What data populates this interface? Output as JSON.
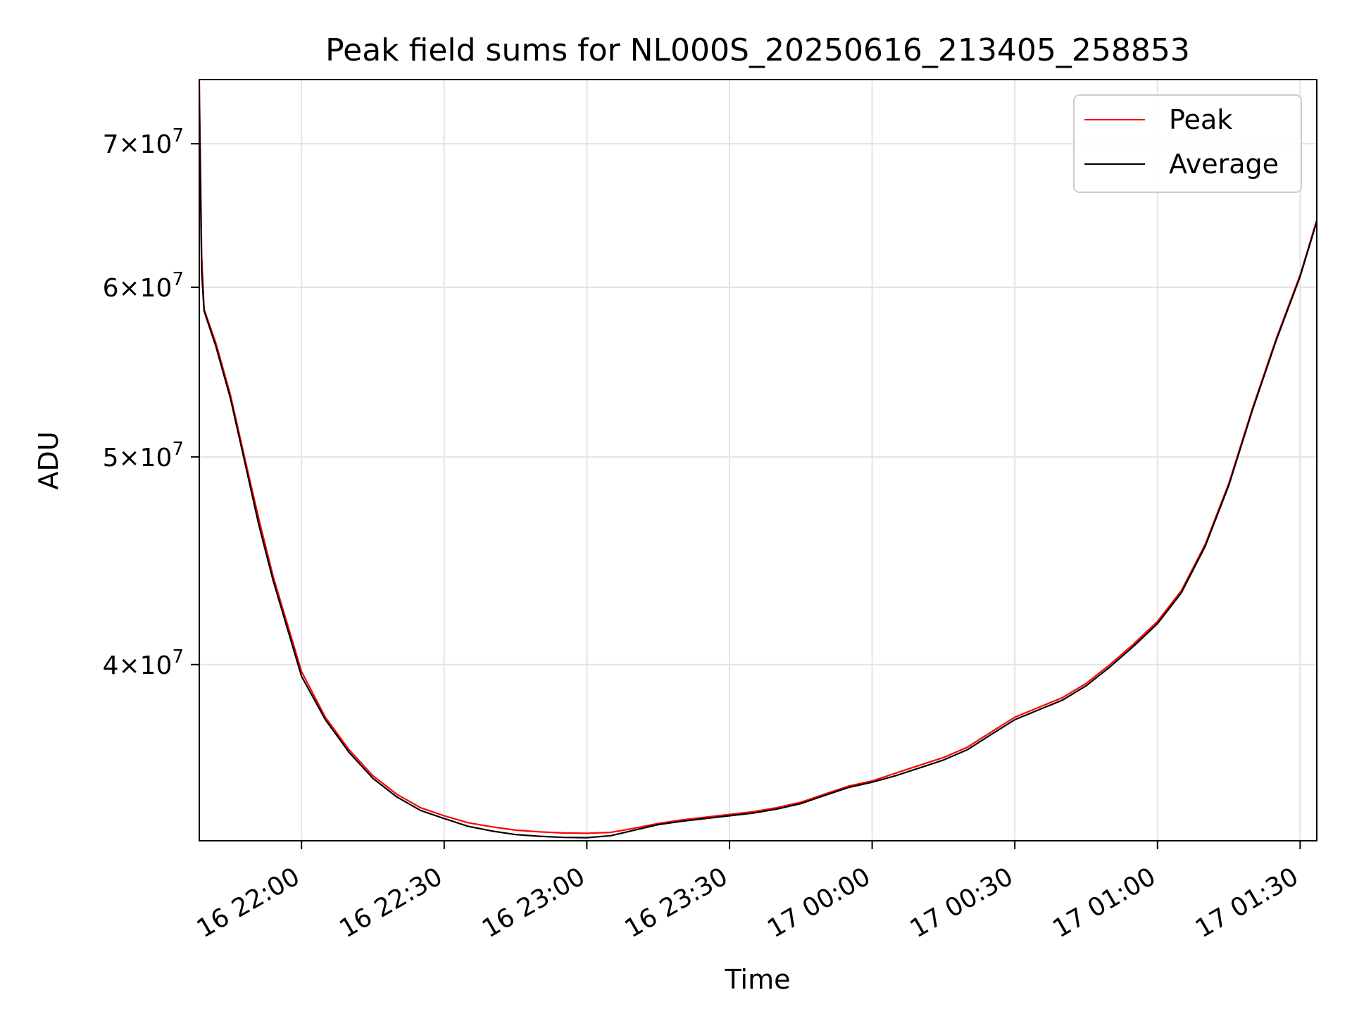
{
  "chart_data": {
    "type": "line",
    "title": "Peak field sums for NL000S_20250616_213405_258853",
    "xlabel": "Time",
    "ylabel": "ADU",
    "yscale": "log",
    "ylim": [
      33100000,
      75000000
    ],
    "xlim": [
      "16 21:38:30",
      "17 01:33:30"
    ],
    "grid": true,
    "legend_position": "top-right",
    "x_ticks": [
      {
        "time": "16 22:00",
        "label": "16 22:00"
      },
      {
        "time": "16 22:30",
        "label": "16 22:30"
      },
      {
        "time": "16 23:00",
        "label": "16 23:00"
      },
      {
        "time": "16 23:30",
        "label": "16 23:30"
      },
      {
        "time": "17 00:00",
        "label": "17 00:00"
      },
      {
        "time": "17 00:30",
        "label": "17 00:30"
      },
      {
        "time": "17 01:00",
        "label": "17 01:00"
      },
      {
        "time": "17 01:30",
        "label": "17 01:30"
      }
    ],
    "y_ticks": [
      {
        "value": 40000000,
        "coef": "4",
        "exp": "7"
      },
      {
        "value": 50000000,
        "coef": "5",
        "exp": "7"
      },
      {
        "value": 60000000,
        "coef": "6",
        "exp": "7"
      },
      {
        "value": 70000000,
        "coef": "7",
        "exp": "7"
      }
    ],
    "series": [
      {
        "name": "Peak",
        "color": "#ff0000",
        "points": [
          [
            "16 21:38:30",
            75000000
          ],
          [
            "16 21:39:00",
            62000000
          ],
          [
            "16 21:39:30",
            58600000
          ],
          [
            "16 21:42:00",
            56500000
          ],
          [
            "16 21:45:00",
            53500000
          ],
          [
            "16 21:48:00",
            50000000
          ],
          [
            "16 21:51:00",
            46800000
          ],
          [
            "16 21:54:00",
            44000000
          ],
          [
            "16 21:57:00",
            41800000
          ],
          [
            "16 22:00:00",
            39700000
          ],
          [
            "16 22:05:00",
            37800000
          ],
          [
            "16 22:10:00",
            36500000
          ],
          [
            "16 22:15:00",
            35500000
          ],
          [
            "16 22:20:00",
            34800000
          ],
          [
            "16 22:25:00",
            34300000
          ],
          [
            "16 22:30:00",
            34000000
          ],
          [
            "16 22:35:00",
            33750000
          ],
          [
            "16 22:40:00",
            33600000
          ],
          [
            "16 22:45:00",
            33480000
          ],
          [
            "16 22:50:00",
            33420000
          ],
          [
            "16 22:55:00",
            33380000
          ],
          [
            "16 23:00:00",
            33370000
          ],
          [
            "16 23:05:00",
            33400000
          ],
          [
            "16 23:10:00",
            33550000
          ],
          [
            "16 23:15:00",
            33720000
          ],
          [
            "16 23:20:00",
            33850000
          ],
          [
            "16 23:25:00",
            33950000
          ],
          [
            "16 23:30:00",
            34050000
          ],
          [
            "16 23:35:00",
            34150000
          ],
          [
            "16 23:40:00",
            34300000
          ],
          [
            "16 23:45:00",
            34500000
          ],
          [
            "16 23:50:00",
            34800000
          ],
          [
            "16 23:55:00",
            35100000
          ],
          [
            "17 00:00:00",
            35300000
          ],
          [
            "17 00:05:00",
            35600000
          ],
          [
            "17 00:10:00",
            35900000
          ],
          [
            "17 00:15:00",
            36200000
          ],
          [
            "17 00:20:00",
            36600000
          ],
          [
            "17 00:25:00",
            37200000
          ],
          [
            "17 00:30:00",
            37800000
          ],
          [
            "17 00:35:00",
            38200000
          ],
          [
            "17 00:40:00",
            38600000
          ],
          [
            "17 00:45:00",
            39200000
          ],
          [
            "17 00:50:00",
            40000000
          ],
          [
            "17 00:55:00",
            40900000
          ],
          [
            "17 01:00:00",
            41900000
          ],
          [
            "17 01:05:00",
            43300000
          ],
          [
            "17 01:10:00",
            45500000
          ],
          [
            "17 01:15:00",
            48600000
          ],
          [
            "17 01:20:00",
            52700000
          ],
          [
            "17 01:25:00",
            56800000
          ],
          [
            "17 01:30:00",
            60800000
          ],
          [
            "17 01:33:30",
            64500000
          ]
        ]
      },
      {
        "name": "Average",
        "color": "#000000",
        "points": [
          [
            "16 21:38:30",
            73000000
          ],
          [
            "16 21:39:00",
            61000000
          ],
          [
            "16 21:39:30",
            58500000
          ],
          [
            "16 21:42:00",
            56300000
          ],
          [
            "16 21:45:00",
            53300000
          ],
          [
            "16 21:48:00",
            49800000
          ],
          [
            "16 21:51:00",
            46500000
          ],
          [
            "16 21:54:00",
            43800000
          ],
          [
            "16 21:57:00",
            41600000
          ],
          [
            "16 22:00:00",
            39500000
          ],
          [
            "16 22:05:00",
            37700000
          ],
          [
            "16 22:10:00",
            36400000
          ],
          [
            "16 22:15:00",
            35400000
          ],
          [
            "16 22:20:00",
            34700000
          ],
          [
            "16 22:25:00",
            34200000
          ],
          [
            "16 22:30:00",
            33900000
          ],
          [
            "16 22:35:00",
            33620000
          ],
          [
            "16 22:40:00",
            33450000
          ],
          [
            "16 22:45:00",
            33320000
          ],
          [
            "16 22:50:00",
            33260000
          ],
          [
            "16 22:55:00",
            33220000
          ],
          [
            "16 23:00:00",
            33210000
          ],
          [
            "16 23:05:00",
            33280000
          ],
          [
            "16 23:10:00",
            33480000
          ],
          [
            "16 23:15:00",
            33680000
          ],
          [
            "16 23:20:00",
            33800000
          ],
          [
            "16 23:25:00",
            33900000
          ],
          [
            "16 23:30:00",
            34000000
          ],
          [
            "16 23:35:00",
            34100000
          ],
          [
            "16 23:40:00",
            34250000
          ],
          [
            "16 23:45:00",
            34450000
          ],
          [
            "16 23:50:00",
            34750000
          ],
          [
            "16 23:55:00",
            35050000
          ],
          [
            "17 00:00:00",
            35250000
          ],
          [
            "17 00:05:00",
            35500000
          ],
          [
            "17 00:10:00",
            35800000
          ],
          [
            "17 00:15:00",
            36100000
          ],
          [
            "17 00:20:00",
            36500000
          ],
          [
            "17 00:25:00",
            37100000
          ],
          [
            "17 00:30:00",
            37700000
          ],
          [
            "17 00:35:00",
            38100000
          ],
          [
            "17 00:40:00",
            38500000
          ],
          [
            "17 00:45:00",
            39100000
          ],
          [
            "17 00:50:00",
            39900000
          ],
          [
            "17 00:55:00",
            40800000
          ],
          [
            "17 01:00:00",
            41800000
          ],
          [
            "17 01:05:00",
            43200000
          ],
          [
            "17 01:10:00",
            45400000
          ],
          [
            "17 01:15:00",
            48500000
          ],
          [
            "17 01:20:00",
            52600000
          ],
          [
            "17 01:25:00",
            56700000
          ],
          [
            "17 01:30:00",
            60700000
          ],
          [
            "17 01:33:30",
            64400000
          ]
        ]
      }
    ]
  }
}
